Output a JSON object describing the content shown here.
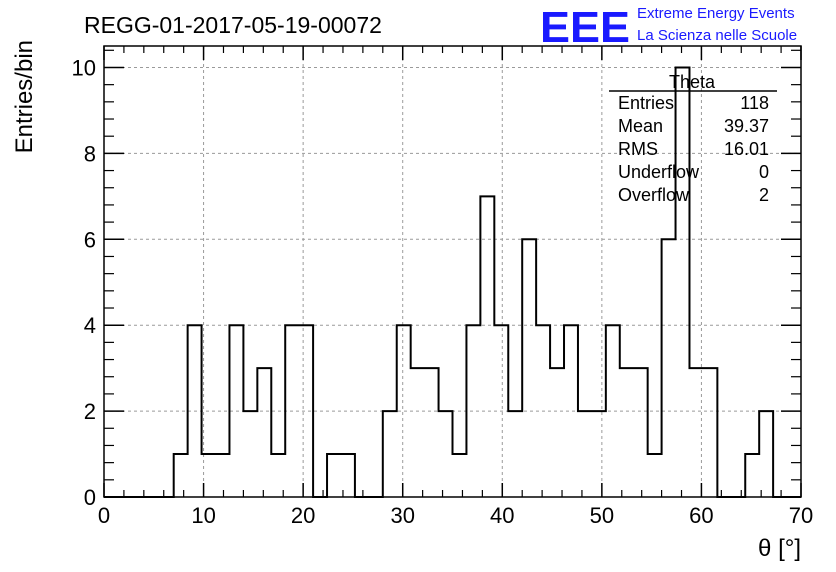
{
  "chart_data": {
    "type": "histogram",
    "title": "REGG-01-2017-05-19-00072",
    "xlabel": "θ [°]",
    "ylabel": "Entries/bin",
    "xlim": [
      0,
      70
    ],
    "ylim": [
      0,
      10.5
    ],
    "x_ticks": [
      "0",
      "10",
      "20",
      "30",
      "40",
      "50",
      "60",
      "70"
    ],
    "y_ticks": [
      "0",
      "2",
      "4",
      "6",
      "8",
      "10"
    ],
    "grid": true,
    "bin_width": 1.4,
    "bin_start": 0,
    "values": [
      0,
      0,
      0,
      0,
      0,
      1,
      4,
      1,
      1,
      4,
      2,
      3,
      1,
      4,
      4,
      0,
      1,
      1,
      0,
      0,
      2,
      4,
      3,
      3,
      2,
      1,
      4,
      7,
      4,
      2,
      6,
      4,
      3,
      4,
      2,
      2,
      4,
      3,
      3,
      1,
      6,
      10,
      3,
      3,
      0,
      0,
      1,
      2,
      0,
      0
    ],
    "stats": {
      "name": "Theta",
      "rows": [
        {
          "label": "Entries",
          "value": "118"
        },
        {
          "label": "Mean",
          "value": "39.37"
        },
        {
          "label": "RMS",
          "value": "16.01"
        },
        {
          "label": "Underflow",
          "value": "0"
        },
        {
          "label": "Overflow",
          "value": "2"
        }
      ]
    },
    "logo": {
      "mark": "EEE",
      "line1": "Extreme Energy Events",
      "line2": "La Scienza nelle Scuole",
      "color": "#1a1aff"
    },
    "line_color": "#000000",
    "grid_color": "#9a9a9a"
  }
}
